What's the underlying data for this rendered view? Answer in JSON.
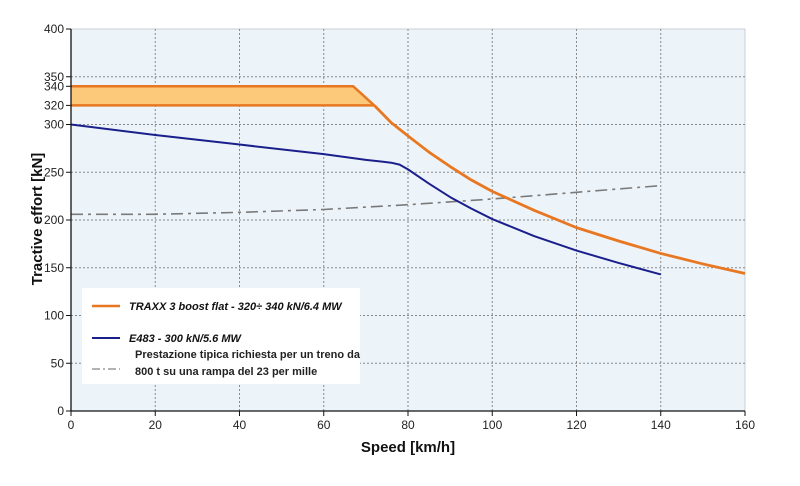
{
  "chart_data": {
    "type": "line",
    "title": "",
    "xlabel": "Speed [km/h]",
    "ylabel": "Tractive effort [kN]",
    "xlim": [
      0,
      160
    ],
    "ylim": [
      0,
      400
    ],
    "xticks": [
      0,
      20,
      40,
      60,
      80,
      100,
      120,
      140,
      160
    ],
    "yticks": [
      0,
      50,
      100,
      150,
      200,
      250,
      300,
      350,
      400
    ],
    "extra_yticks": [
      320,
      340
    ],
    "grid": true,
    "legend_position": "lower-left",
    "band": {
      "name": "TRAXX 3 boost flat range",
      "lower": 320,
      "upper": 340,
      "color": "#fcc87a"
    },
    "series": [
      {
        "name": "TRAXX 3 boost flat - 320÷ 340 kN/6.4 MW",
        "color": "#e87722",
        "style": "solid",
        "upper": {
          "x": [
            0,
            67,
            72
          ],
          "y": [
            340,
            340,
            320
          ]
        },
        "lower": {
          "x": [
            0,
            72
          ],
          "y": [
            320,
            320
          ]
        },
        "x": [
          72,
          76,
          80,
          85,
          90,
          95,
          100,
          110,
          120,
          130,
          140,
          150,
          160
        ],
        "y": [
          320,
          302,
          288,
          271,
          256,
          242,
          230,
          210,
          192,
          178,
          165,
          154,
          144
        ]
      },
      {
        "name": "E483 - 300 kN/5.6 MW",
        "color": "#1a1f8c",
        "style": "solid",
        "x": [
          0,
          20,
          40,
          60,
          70,
          76,
          78,
          80,
          85,
          90,
          95,
          100,
          110,
          120,
          130,
          140
        ],
        "y": [
          300,
          289,
          279,
          269,
          263,
          260,
          258,
          253,
          238,
          224,
          212,
          201,
          183,
          168,
          155,
          143
        ]
      },
      {
        "name": "Prestazione tipica richiesta per un treno da 800 t su una rampa del 23 per mille",
        "color": "#7a7a7a",
        "style": "dashdot",
        "x": [
          0,
          20,
          40,
          60,
          80,
          100,
          120,
          140
        ],
        "y": [
          206,
          206,
          208,
          211,
          216,
          222,
          229,
          236
        ]
      }
    ]
  },
  "legend": {
    "items": [
      {
        "label": "TRAXX 3 boost flat - 320÷ 340 kN/6.4 MW"
      },
      {
        "label": "E483 - 300 kN/5.6 MW"
      },
      {
        "label_line1": "Prestazione tipica richiesta per un treno da",
        "label_line2": "800 t su una rampa del 23 per mille"
      }
    ]
  }
}
